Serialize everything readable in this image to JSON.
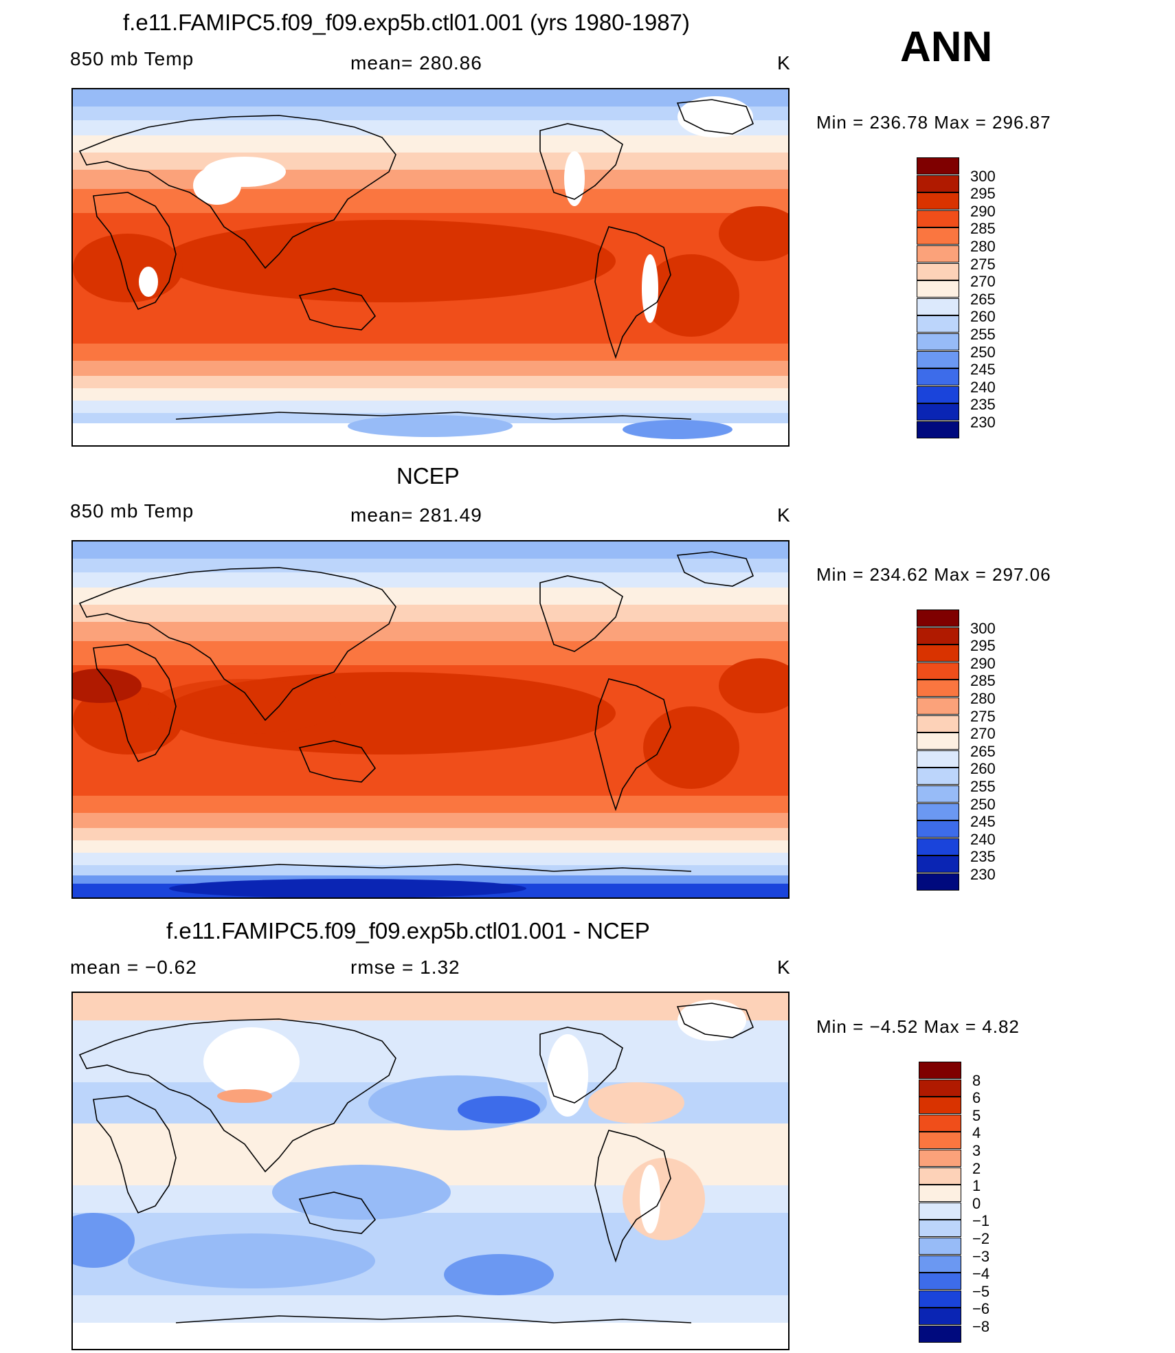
{
  "season": "ANN",
  "units": "K",
  "panels": [
    {
      "id": "model",
      "title": "f.e11.FAMIPC5.f09_f09.exp5b.ctl01.001 (yrs 1980-1987)",
      "variable": "850 mb Temp",
      "stat_text": "mean=  280.86",
      "units": "K",
      "minmax": "Min  =  236.78  Max  =  296.87",
      "colorbar_labels": [
        "300",
        "295",
        "290",
        "285",
        "280",
        "275",
        "270",
        "265",
        "260",
        "255",
        "250",
        "245",
        "240",
        "235",
        "230"
      ]
    },
    {
      "id": "obs",
      "title": "NCEP",
      "variable": "850 mb Temp",
      "stat_text": "mean=  281.49",
      "units": "K",
      "minmax": "Min  =  234.62  Max  =  297.06",
      "colorbar_labels": [
        "300",
        "295",
        "290",
        "285",
        "280",
        "275",
        "270",
        "265",
        "260",
        "255",
        "250",
        "245",
        "240",
        "235",
        "230"
      ]
    },
    {
      "id": "diff",
      "title": "f.e11.FAMIPC5.f09_f09.exp5b.ctl01.001 - NCEP",
      "mean_text": "mean  =    −0.62",
      "rmse_text": "rmse  =     1.32",
      "units": "K",
      "minmax": "Min  =    −4.52  Max  =      4.82",
      "colorbar_labels": [
        "8",
        "6",
        "5",
        "4",
        "3",
        "2",
        "1",
        "0",
        "−1",
        "−2",
        "−3",
        "−4",
        "−5",
        "−6",
        "−8"
      ]
    }
  ],
  "colors": {
    "temp_scale": [
      "#7f0000",
      "#b01a00",
      "#d93300",
      "#f04e1a",
      "#fa7640",
      "#fba27a",
      "#fdd2b8",
      "#fdf0e2",
      "#dce9fc",
      "#bcd5fb",
      "#97bbf7",
      "#6b98f2",
      "#3d6cea",
      "#1a44db",
      "#0a25b4",
      "#000a7e"
    ],
    "diff_scale": [
      "#7f0000",
      "#b01a00",
      "#d93300",
      "#f04e1a",
      "#fa7640",
      "#fba27a",
      "#fdd2b8",
      "#fdf0e2",
      "#dce9fc",
      "#bcd5fb",
      "#97bbf7",
      "#6b98f2",
      "#3d6cea",
      "#1a44db",
      "#0a25b4",
      "#000a7e"
    ]
  }
}
